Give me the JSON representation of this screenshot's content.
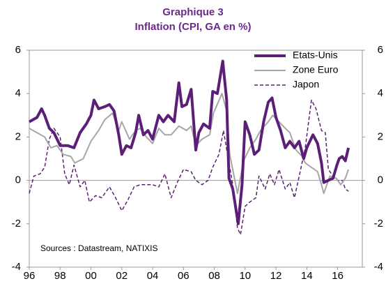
{
  "chart_data": {
    "type": "line",
    "title": "Graphique 3",
    "subtitle": "Inflation (CPI, GA en %)",
    "annotation": "Sources : Datastream, NATIXIS",
    "xlim": [
      1996,
      2017.6
    ],
    "xticks": [
      {
        "value": 1996,
        "label": "96"
      },
      {
        "value": 1998,
        "label": "98"
      },
      {
        "value": 2000,
        "label": "00"
      },
      {
        "value": 2002,
        "label": "02"
      },
      {
        "value": 2004,
        "label": "04"
      },
      {
        "value": 2006,
        "label": "06"
      },
      {
        "value": 2008,
        "label": "08"
      },
      {
        "value": 2010,
        "label": "10"
      },
      {
        "value": 2012,
        "label": "12"
      },
      {
        "value": 2014,
        "label": "14"
      },
      {
        "value": 2016,
        "label": "16"
      }
    ],
    "ylim": [
      -4,
      6
    ],
    "yticks": [
      -4,
      -2,
      0,
      2,
      4,
      6
    ],
    "y2lim": [
      -4,
      6
    ],
    "y2ticks": [
      -4,
      -2,
      0,
      2,
      4,
      6
    ],
    "legend": "top-right",
    "series": [
      {
        "name": "Etats-Unis",
        "color": "#5b1f77",
        "width": 4,
        "dash": false,
        "x": [
          1996.0,
          1996.5,
          1996.8,
          1997.0,
          1997.3,
          1997.6,
          1998.0,
          1998.5,
          1998.9,
          1999.3,
          1999.7,
          2000.0,
          2000.2,
          2000.5,
          2000.9,
          2001.2,
          2001.5,
          2001.8,
          2002.0,
          2002.3,
          2002.6,
          2002.9,
          2003.1,
          2003.4,
          2003.7,
          2004.0,
          2004.4,
          2004.7,
          2005.0,
          2005.4,
          2005.7,
          2005.9,
          2006.2,
          2006.5,
          2006.8,
          2007.0,
          2007.3,
          2007.7,
          2007.9,
          2008.2,
          2008.55,
          2008.8,
          2008.95,
          2009.2,
          2009.55,
          2009.8,
          2010.0,
          2010.3,
          2010.6,
          2010.9,
          2011.2,
          2011.5,
          2011.75,
          2012.0,
          2012.3,
          2012.6,
          2012.9,
          2013.2,
          2013.5,
          2013.8,
          2014.0,
          2014.4,
          2014.7,
          2014.95,
          2015.1,
          2015.4,
          2015.7,
          2015.95,
          2016.1,
          2016.3,
          2016.5,
          2016.7
        ],
        "values": [
          2.7,
          2.9,
          3.3,
          3.0,
          2.4,
          2.2,
          1.6,
          1.6,
          1.5,
          2.2,
          2.6,
          3.0,
          3.7,
          3.3,
          3.4,
          3.5,
          3.2,
          2.1,
          1.2,
          1.6,
          1.5,
          2.2,
          3.0,
          2.1,
          2.3,
          1.9,
          3.0,
          2.7,
          3.0,
          2.7,
          4.5,
          3.4,
          3.5,
          4.2,
          1.4,
          2.2,
          2.6,
          2.4,
          4.1,
          4.0,
          5.5,
          3.7,
          0.1,
          -0.4,
          -2.0,
          -0.2,
          2.7,
          2.1,
          1.2,
          1.4,
          2.7,
          3.6,
          3.8,
          2.9,
          2.3,
          1.5,
          1.8,
          1.5,
          1.8,
          1.0,
          1.5,
          2.1,
          1.7,
          0.8,
          -0.1,
          0.0,
          0.1,
          0.7,
          1.0,
          1.1,
          0.9,
          1.5
        ]
      },
      {
        "name": "Zone Euro",
        "color": "#a6a6a6",
        "width": 2,
        "dash": false,
        "x": [
          1996.0,
          1996.5,
          1997.0,
          1997.4,
          1997.8,
          1998.2,
          1998.7,
          1998.95,
          1999.5,
          2000.0,
          2000.5,
          2000.9,
          2001.4,
          2001.8,
          2002.0,
          2002.5,
          2002.9,
          2003.2,
          2003.6,
          2004.0,
          2004.4,
          2004.8,
          2005.2,
          2005.7,
          2006.2,
          2006.5,
          2006.8,
          2007.2,
          2007.7,
          2007.95,
          2008.5,
          2008.8,
          2009.0,
          2009.5,
          2009.9,
          2010.3,
          2010.7,
          2011.0,
          2011.5,
          2011.8,
          2012.2,
          2012.6,
          2012.9,
          2013.3,
          2013.7,
          2013.9,
          2014.3,
          2014.7,
          2014.95,
          2015.1,
          2015.5,
          2015.9,
          2016.2,
          2016.5,
          2016.7
        ],
        "values": [
          2.4,
          2.2,
          2.0,
          1.5,
          1.6,
          1.2,
          1.1,
          0.8,
          1.0,
          1.8,
          2.3,
          2.8,
          3.1,
          2.3,
          2.7,
          1.9,
          2.3,
          2.4,
          2.0,
          1.7,
          2.4,
          2.1,
          2.1,
          2.5,
          2.3,
          2.5,
          1.6,
          1.9,
          2.1,
          3.1,
          4.0,
          3.2,
          1.2,
          -0.6,
          0.9,
          1.5,
          1.9,
          2.3,
          2.7,
          3.0,
          2.7,
          2.4,
          2.2,
          1.4,
          1.1,
          0.8,
          0.6,
          0.4,
          -0.2,
          -0.6,
          0.2,
          0.1,
          -0.2,
          0.1,
          0.5
        ]
      },
      {
        "name": "Japon",
        "color": "#5b1f77",
        "width": 1.5,
        "dash": true,
        "x": [
          1996.0,
          1996.3,
          1996.7,
          1997.0,
          1997.3,
          1997.6,
          1998.0,
          1998.3,
          1998.6,
          1998.9,
          1999.3,
          1999.6,
          1999.9,
          2000.3,
          2000.7,
          2001.2,
          2001.6,
          2002.0,
          2002.4,
          2002.8,
          2003.2,
          2003.6,
          2004.0,
          2004.4,
          2004.8,
          2005.2,
          2005.6,
          2006.0,
          2006.5,
          2006.8,
          2007.2,
          2007.6,
          2007.9,
          2008.3,
          2008.6,
          2008.9,
          2009.2,
          2009.5,
          2009.7,
          2010.0,
          2010.3,
          2010.7,
          2010.9,
          2011.3,
          2011.6,
          2011.9,
          2012.2,
          2012.6,
          2012.9,
          2013.2,
          2013.6,
          2013.9,
          2014.3,
          2014.6,
          2014.95,
          2015.2,
          2015.4,
          2015.7,
          2016.0,
          2016.3,
          2016.5,
          2016.7
        ],
        "values": [
          -0.6,
          0.2,
          0.3,
          0.6,
          1.9,
          2.4,
          2.0,
          0.3,
          -0.2,
          0.7,
          -0.3,
          0.0,
          -1.0,
          -0.7,
          -0.8,
          -0.3,
          -0.8,
          -1.4,
          -0.9,
          -0.3,
          -0.2,
          -0.2,
          -0.2,
          -0.3,
          0.3,
          -0.8,
          -0.1,
          0.5,
          0.4,
          0.0,
          -0.2,
          0.0,
          0.6,
          1.2,
          2.3,
          1.0,
          -0.2,
          -2.2,
          -2.5,
          -1.2,
          -1.0,
          -0.8,
          0.2,
          -0.4,
          0.3,
          -0.2,
          0.5,
          -0.4,
          -0.1,
          -0.8,
          0.5,
          1.5,
          3.7,
          3.3,
          2.3,
          2.2,
          0.5,
          0.2,
          0.0,
          0.0,
          -0.4,
          -0.5
        ]
      }
    ]
  }
}
